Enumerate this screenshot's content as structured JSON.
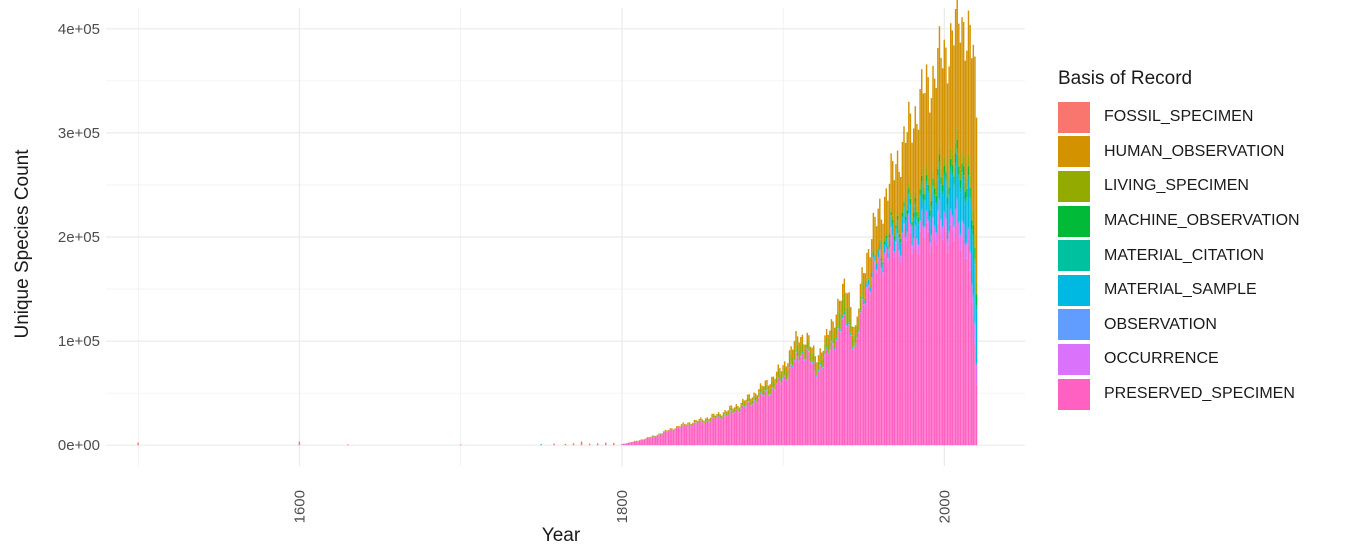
{
  "chart_data": {
    "type": "bar",
    "stacked": true,
    "title": "",
    "xlabel": "Year",
    "ylabel": "Unique Species Count",
    "xlim": [
      1480,
      2050
    ],
    "ylim": [
      -20000,
      420000
    ],
    "x_ticks": [
      1600,
      1800,
      2000
    ],
    "y_ticks": [
      0,
      100000,
      200000,
      300000,
      400000
    ],
    "y_tick_labels": [
      "0e+00",
      "1e+05",
      "2e+05",
      "3e+05",
      "4e+05"
    ],
    "grid": true,
    "legend_position": "right",
    "legend_title": "Basis of Record",
    "series": [
      {
        "name": "FOSSIL_SPECIMEN",
        "color": "#F8766D"
      },
      {
        "name": "HUMAN_OBSERVATION",
        "color": "#D39200"
      },
      {
        "name": "LIVING_SPECIMEN",
        "color": "#93AA00"
      },
      {
        "name": "MACHINE_OBSERVATION",
        "color": "#00BA38"
      },
      {
        "name": "MATERIAL_CITATION",
        "color": "#00C19F"
      },
      {
        "name": "MATERIAL_SAMPLE",
        "color": "#00B9E3"
      },
      {
        "name": "OBSERVATION",
        "color": "#619CFF"
      },
      {
        "name": "OCCURRENCE",
        "color": "#DB72FB"
      },
      {
        "name": "PRESERVED_SPECIMEN",
        "color": "#FF61C3"
      }
    ],
    "preserved_specimen_profile": {
      "x": [
        1800,
        1810,
        1820,
        1830,
        1840,
        1850,
        1860,
        1870,
        1880,
        1890,
        1900,
        1905,
        1910,
        1915,
        1920,
        1925,
        1930,
        1935,
        1940,
        1945,
        1950,
        1955,
        1960,
        1965,
        1970,
        1975,
        1980,
        1985,
        1990,
        1995,
        2000,
        2005,
        2010,
        2013,
        2015,
        2018,
        2020
      ],
      "values": [
        1000,
        4000,
        8000,
        14000,
        19000,
        22000,
        26000,
        32000,
        40000,
        50000,
        62000,
        75000,
        85000,
        88000,
        70000,
        78000,
        95000,
        110000,
        118000,
        90000,
        140000,
        160000,
        175000,
        183000,
        190000,
        195000,
        197000,
        199000,
        201000,
        203000,
        204000,
        203000,
        200000,
        195000,
        180000,
        120000,
        60000
      ]
    },
    "top_total_profile": {
      "x": [
        1800,
        1810,
        1820,
        1830,
        1840,
        1850,
        1860,
        1870,
        1880,
        1890,
        1900,
        1905,
        1910,
        1915,
        1920,
        1925,
        1930,
        1935,
        1940,
        1945,
        1950,
        1955,
        1960,
        1965,
        1970,
        1975,
        1980,
        1985,
        1990,
        1995,
        2000,
        2005,
        2010,
        2013,
        2015,
        2018,
        2020
      ],
      "values": [
        1000,
        4500,
        9000,
        15500,
        21000,
        25000,
        30000,
        37000,
        47000,
        60000,
        75000,
        92000,
        105000,
        103000,
        85000,
        95000,
        115000,
        140000,
        152000,
        108000,
        172000,
        200000,
        225000,
        245000,
        270000,
        290000,
        310000,
        330000,
        345000,
        360000,
        375000,
        390000,
        410000,
        400000,
        390000,
        370000,
        320000
      ]
    }
  }
}
